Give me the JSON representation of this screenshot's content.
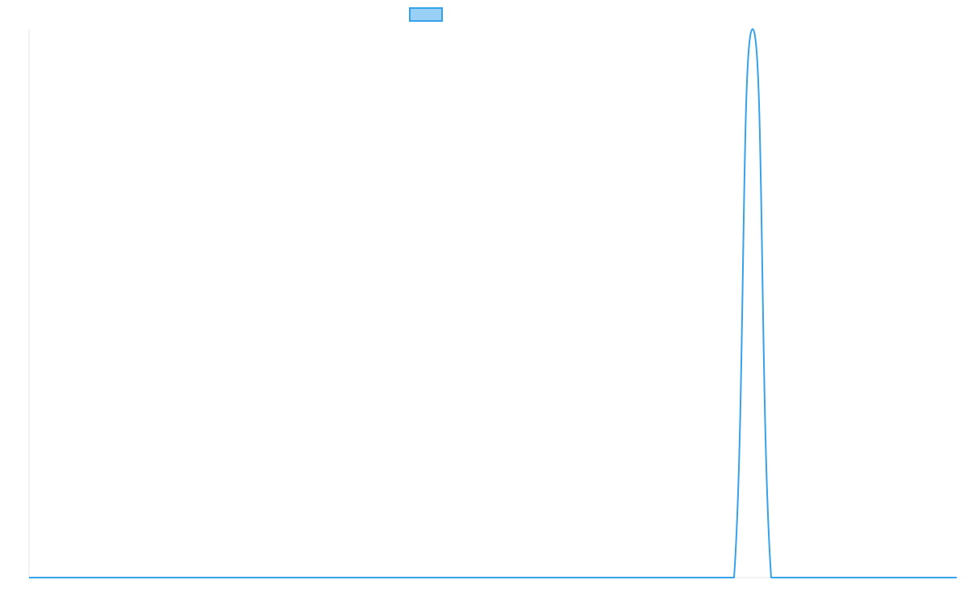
{
  "chart_data": {
    "type": "line",
    "title": "",
    "xlabel": "",
    "ylabel": "",
    "x": [
      0,
      1,
      2,
      3,
      4,
      5,
      6,
      7,
      8,
      9,
      10,
      11,
      12,
      13,
      14,
      15,
      16,
      17,
      18,
      19,
      20,
      21,
      22,
      23,
      24,
      25,
      26,
      27,
      28,
      29,
      30,
      31,
      32,
      33,
      34,
      35,
      36,
      37,
      38,
      39,
      40,
      41,
      42,
      43,
      44,
      45,
      46,
      47,
      48,
      49,
      50
    ],
    "xlim": [
      0,
      50
    ],
    "ylim": [
      0,
      1
    ],
    "series": [
      {
        "name": "",
        "color": "#36a2eb",
        "fill": "#9ad0f5",
        "values": [
          0,
          0,
          0,
          0,
          0,
          0,
          0,
          0,
          0,
          0,
          0,
          0,
          0,
          0,
          0,
          0,
          0,
          0,
          0,
          0,
          0,
          0,
          0,
          0,
          0,
          0,
          0,
          0,
          0,
          0,
          0,
          0,
          0,
          0,
          0,
          0,
          0,
          0,
          0,
          1,
          0,
          0,
          0,
          0,
          0,
          0,
          0,
          0,
          0,
          0,
          0
        ]
      }
    ],
    "legend": "top",
    "grid": false,
    "axis_color": "#e6e6e6"
  }
}
